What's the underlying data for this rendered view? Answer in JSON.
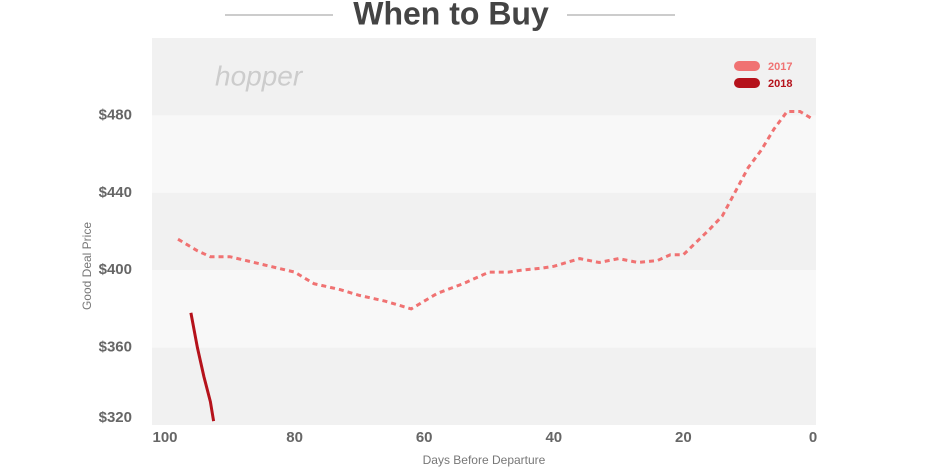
{
  "chart_data": {
    "type": "line",
    "title": "When to Buy",
    "logo": "hopper",
    "x_label": "Days Before Departure",
    "y_label": "Good Deal Price",
    "xlim": [
      100,
      0
    ],
    "xticks": [
      100,
      80,
      60,
      40,
      20,
      0
    ],
    "ylim": [
      320,
      520
    ],
    "yticks": [
      {
        "value": 320,
        "label": "$320"
      },
      {
        "value": 360,
        "label": "$360"
      },
      {
        "value": 400,
        "label": "$400"
      },
      {
        "value": 440,
        "label": "$440"
      },
      {
        "value": 480,
        "label": "$480"
      }
    ],
    "legend": "upper right",
    "series": [
      {
        "name": "2017",
        "color": "#f07272",
        "dash": true,
        "x": [
          98,
          95,
          93,
          90,
          85,
          80,
          77,
          73,
          70,
          66,
          62,
          58,
          54,
          50,
          47,
          45,
          42,
          40,
          36,
          33,
          30,
          27,
          24,
          22,
          20,
          16,
          14,
          10,
          8,
          6,
          4,
          2,
          0
        ],
        "values": [
          416,
          410,
          407,
          407,
          403,
          399,
          393,
          390,
          387,
          384,
          380,
          388,
          393,
          399,
          399,
          400,
          401,
          402,
          406,
          404,
          406,
          404,
          405,
          408,
          408,
          421,
          428,
          453,
          462,
          473,
          482,
          482,
          478
        ]
      },
      {
        "name": "2018",
        "color": "#b5121b",
        "dash": false,
        "x": [
          96,
          95,
          94,
          93,
          92.5
        ],
        "values": [
          378,
          360,
          345,
          332,
          322
        ]
      }
    ]
  }
}
